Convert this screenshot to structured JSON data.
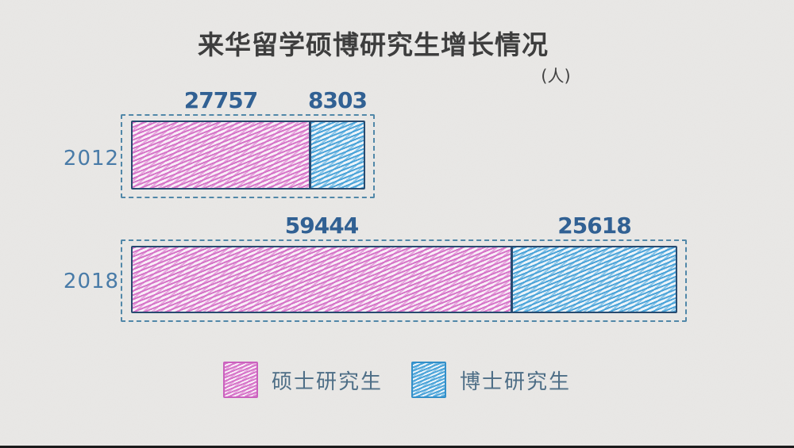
{
  "page": {
    "title": "来华留学硕博研究生增长情况",
    "unit_label": "(人)"
  },
  "chart_data": {
    "type": "bar",
    "orientation": "horizontal",
    "stacked": true,
    "style": "hand-drawn crayon hatching on paper background",
    "title": "来华留学硕博研究生增长情况",
    "unit": "人",
    "categories": [
      "2012",
      "2018"
    ],
    "series": [
      {
        "name": "硕士研究生",
        "color": "#d56cc6",
        "values": [
          27757,
          59444
        ]
      },
      {
        "name": "博士研究生",
        "color": "#3f9fd8",
        "values": [
          8303,
          25618
        ]
      }
    ],
    "totals": [
      36060,
      85062
    ],
    "legend_position": "bottom",
    "grid": false,
    "xlim": [
      0,
      88000
    ]
  },
  "colors": {
    "paper_background": "#e9e8e6",
    "title_ink": "#3a3a3a",
    "value_ink": "#2d5e92",
    "year_label_ink": "#4579a7",
    "dashed_outline": "#4e86a8",
    "bar_border": "#24486e",
    "legend_text": "#4b6c85",
    "master_pink": "#d56cc6",
    "doctor_blue": "#3f9fd8"
  }
}
